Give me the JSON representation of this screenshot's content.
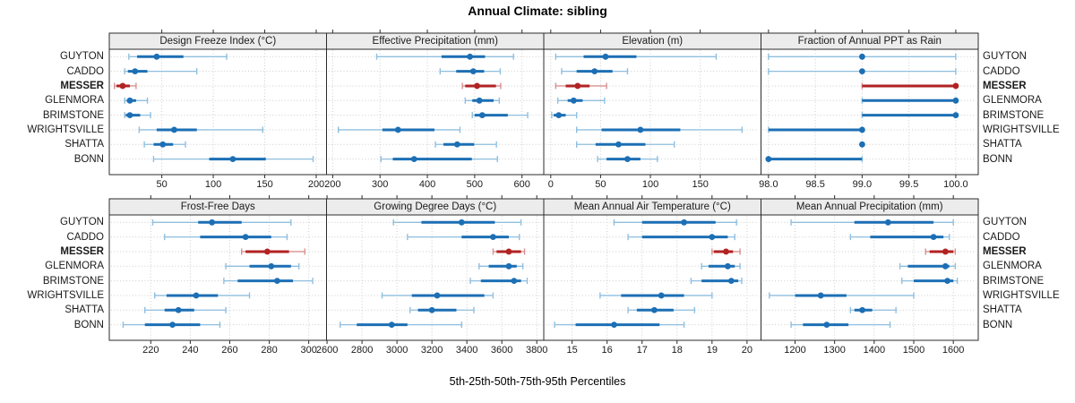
{
  "title": "Annual Climate: sibling",
  "caption": "5th-25th-50th-75th-95th Percentiles",
  "colors": {
    "series": "#1c6fb4",
    "series_light": "#8fbfdf",
    "highlight": "#b22222",
    "highlight_light": "#d99090",
    "strip_bg": "#ececec",
    "panel_border": "#2b2b2b",
    "grid": "#cccccc",
    "text": "#1a1a1a"
  },
  "chart_data": {
    "type": "scatter",
    "subtype": "percentile_dot_whisker_lattice",
    "title": "Annual Climate: sibling",
    "caption": "5th-25th-50th-75th-95th Percentiles",
    "legend_position": "none",
    "grid": "dotted",
    "percentiles": [
      "5th",
      "25th",
      "50th",
      "75th",
      "95th"
    ],
    "sites": [
      "GUYTON",
      "CADDO",
      "MESSER",
      "GLENMORA",
      "BRIMSTONE",
      "WRIGHTSVILLE",
      "SHATTA",
      "BONN"
    ],
    "highlight_site": "MESSER",
    "panels": [
      {
        "title": "Design Freeze Index (°C)",
        "row": 0,
        "col": 0,
        "xlim": [
          -1,
          210
        ],
        "ticks": [
          50,
          100,
          150,
          200
        ],
        "tick_labels": [
          "50",
          "100",
          "150",
          "200"
        ],
        "series": [
          [
            18,
            26,
            45,
            71,
            113
          ],
          [
            14,
            17,
            24,
            36,
            84
          ],
          [
            4,
            6,
            12,
            19,
            25
          ],
          [
            14,
            16,
            19,
            25,
            36
          ],
          [
            14,
            15,
            19,
            29,
            39
          ],
          [
            28,
            45,
            62,
            84,
            148
          ],
          [
            33,
            42,
            51,
            61,
            73
          ],
          [
            42,
            96,
            119,
            151,
            197
          ]
        ]
      },
      {
        "title": "Effective Precipitation (mm)",
        "row": 0,
        "col": 1,
        "xlim": [
          187,
          646
        ],
        "ticks": [
          200,
          300,
          400,
          500,
          600
        ],
        "tick_labels": [
          "200",
          "300",
          "400",
          "500",
          "600"
        ],
        "series": [
          [
            293,
            430,
            490,
            522,
            582
          ],
          [
            427,
            461,
            497,
            520,
            554
          ],
          [
            474,
            480,
            505,
            545,
            555
          ],
          [
            480,
            495,
            510,
            540,
            552
          ],
          [
            495,
            500,
            516,
            570,
            612
          ],
          [
            212,
            305,
            338,
            415,
            469
          ],
          [
            417,
            434,
            463,
            499,
            546
          ],
          [
            302,
            327,
            372,
            494,
            548
          ]
        ]
      },
      {
        "title": "Elevation (m)",
        "row": 0,
        "col": 2,
        "xlim": [
          -7,
          211
        ],
        "ticks": [
          0,
          50,
          100,
          150
        ],
        "tick_labels": [
          "0",
          "50",
          "100",
          "150"
        ],
        "series": [
          [
            5,
            33,
            55,
            86,
            166
          ],
          [
            11,
            26,
            44,
            62,
            77
          ],
          [
            5,
            15,
            27,
            39,
            56
          ],
          [
            7,
            17,
            23,
            32,
            54
          ],
          [
            1,
            3,
            8,
            15,
            26
          ],
          [
            26,
            51,
            90,
            130,
            192
          ],
          [
            26,
            45,
            68,
            95,
            124
          ],
          [
            47,
            56,
            77,
            90,
            107
          ]
        ]
      },
      {
        "title": "Fraction of Annual PPT as Rain",
        "row": 0,
        "col": 3,
        "xlim": [
          97.92,
          100.24
        ],
        "ticks": [
          98,
          98.5,
          99,
          99.5,
          100
        ],
        "tick_labels": [
          "98.0",
          "98.5",
          "99.0",
          "99.5",
          "100.0"
        ],
        "series": [
          [
            98,
            99,
            99,
            99,
            100
          ],
          [
            98,
            99,
            99,
            99,
            100
          ],
          [
            99,
            99,
            100,
            100,
            100
          ],
          [
            99,
            99,
            100,
            100,
            100
          ],
          [
            99,
            99,
            100,
            100,
            100
          ],
          [
            98,
            98,
            99,
            99,
            99
          ],
          [
            99,
            99,
            99,
            99,
            99
          ],
          [
            98,
            98,
            98,
            99,
            99
          ]
        ]
      },
      {
        "title": "Frost-Free Days",
        "row": 1,
        "col": 0,
        "xlim": [
          199,
          309
        ],
        "ticks": [
          220,
          240,
          260,
          280,
          300
        ],
        "tick_labels": [
          "220",
          "240",
          "260",
          "280",
          "300"
        ],
        "series": [
          [
            221,
            244,
            251,
            266,
            291
          ],
          [
            227,
            245,
            268,
            281,
            289
          ],
          [
            266,
            268,
            279,
            290,
            298
          ],
          [
            258,
            270,
            281,
            291,
            295
          ],
          [
            257,
            264,
            284,
            292,
            302
          ],
          [
            222,
            228,
            243,
            254,
            270
          ],
          [
            217,
            227,
            234,
            242,
            258
          ],
          [
            206,
            217,
            231,
            245,
            255
          ]
        ]
      },
      {
        "title": "Growing Degree Days (°C)",
        "row": 1,
        "col": 1,
        "xlim": [
          2597,
          3840
        ],
        "ticks": [
          2600,
          2800,
          3000,
          3200,
          3400,
          3600,
          3800
        ],
        "tick_labels": [
          "2600",
          "2800",
          "3000",
          "3200",
          "3400",
          "3600",
          "3800"
        ],
        "series": [
          [
            2980,
            3140,
            3370,
            3560,
            3710
          ],
          [
            3060,
            3370,
            3550,
            3640,
            3700
          ],
          [
            3550,
            3570,
            3640,
            3710,
            3730
          ],
          [
            3470,
            3525,
            3640,
            3685,
            3720
          ],
          [
            3420,
            3480,
            3670,
            3710,
            3745
          ],
          [
            2915,
            3085,
            3230,
            3500,
            3550
          ],
          [
            3075,
            3120,
            3200,
            3340,
            3440
          ],
          [
            2675,
            2770,
            2970,
            3060,
            3370
          ]
        ]
      },
      {
        "title": "Mean Annual Air Temperature (°C)",
        "row": 1,
        "col": 2,
        "xlim": [
          14.19,
          20.4
        ],
        "ticks": [
          15,
          16,
          17,
          18,
          19,
          20
        ],
        "tick_labels": [
          "15",
          "16",
          "17",
          "18",
          "19",
          "20"
        ],
        "series": [
          [
            16.2,
            17.0,
            18.2,
            19.1,
            19.7
          ],
          [
            16.6,
            17.0,
            19.0,
            19.45,
            19.65
          ],
          [
            19.0,
            19.05,
            19.4,
            19.6,
            19.8
          ],
          [
            18.7,
            18.9,
            19.45,
            19.65,
            19.8
          ],
          [
            18.4,
            18.7,
            19.55,
            19.75,
            19.85
          ],
          [
            15.8,
            16.4,
            17.55,
            18.2,
            19.0
          ],
          [
            16.6,
            16.85,
            17.35,
            17.9,
            18.5
          ],
          [
            14.5,
            15.1,
            16.2,
            17.5,
            18.2
          ]
        ]
      },
      {
        "title": "Mean Annual Precipitation (mm)",
        "row": 1,
        "col": 3,
        "xlim": [
          1114,
          1663
        ],
        "ticks": [
          1200,
          1300,
          1400,
          1500,
          1600
        ],
        "tick_labels": [
          "1200",
          "1300",
          "1400",
          "1500",
          "1600"
        ],
        "series": [
          [
            1190,
            1350,
            1435,
            1550,
            1600
          ],
          [
            1340,
            1390,
            1550,
            1575,
            1590
          ],
          [
            1530,
            1540,
            1580,
            1600,
            1605
          ],
          [
            1465,
            1485,
            1580,
            1590,
            1605
          ],
          [
            1470,
            1500,
            1585,
            1600,
            1610
          ],
          [
            1135,
            1200,
            1265,
            1330,
            1500
          ],
          [
            1340,
            1350,
            1370,
            1395,
            1455
          ],
          [
            1190,
            1220,
            1280,
            1335,
            1440
          ]
        ]
      }
    ]
  }
}
